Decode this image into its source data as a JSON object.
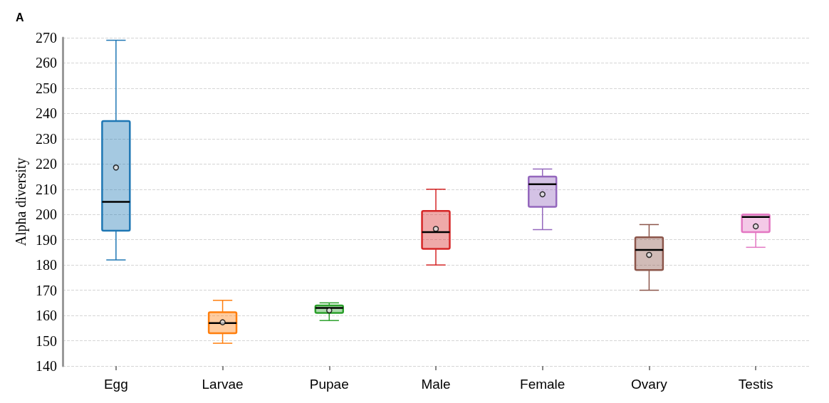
{
  "chart_data": {
    "type": "box",
    "ylabel": "Alpha diversity",
    "annotations": [
      "A"
    ],
    "categories": [
      "Egg",
      "Larvae",
      "Pupae",
      "Male",
      "Female",
      "Ovary",
      "Testis"
    ],
    "colors": [
      "#1f77b4",
      "#ff7f0e",
      "#2ca02c",
      "#d62728",
      "#9467bd",
      "#8c564b",
      "#e377c2"
    ],
    "boxes": [
      {
        "low": 182,
        "q1": 193.6,
        "median": 205,
        "q3": 237,
        "high": 269,
        "mean": 218.6
      },
      {
        "low": 149,
        "q1": 153,
        "median": 157,
        "q3": 161.3,
        "high": 166,
        "mean": 157.3
      },
      {
        "low": 158,
        "q1": 161,
        "median": 163,
        "q3": 164,
        "high": 165,
        "mean": 162
      },
      {
        "low": 180,
        "q1": 186.4,
        "median": 193,
        "q3": 201.4,
        "high": 210,
        "mean": 194.3
      },
      {
        "low": 194,
        "q1": 203,
        "median": 212,
        "q3": 215,
        "high": 218,
        "mean": 208
      },
      {
        "low": 170,
        "q1": 178,
        "median": 186,
        "q3": 191,
        "high": 196,
        "mean": 184
      },
      {
        "low": 187,
        "q1": 193,
        "median": 199,
        "q3": 200,
        "high": 200,
        "mean": 195.3
      }
    ],
    "ylim": [
      140,
      270
    ],
    "yticks": [
      140,
      150,
      160,
      170,
      180,
      190,
      200,
      210,
      220,
      230,
      240,
      250,
      260,
      270
    ],
    "grid": "y",
    "marker": "circle"
  }
}
